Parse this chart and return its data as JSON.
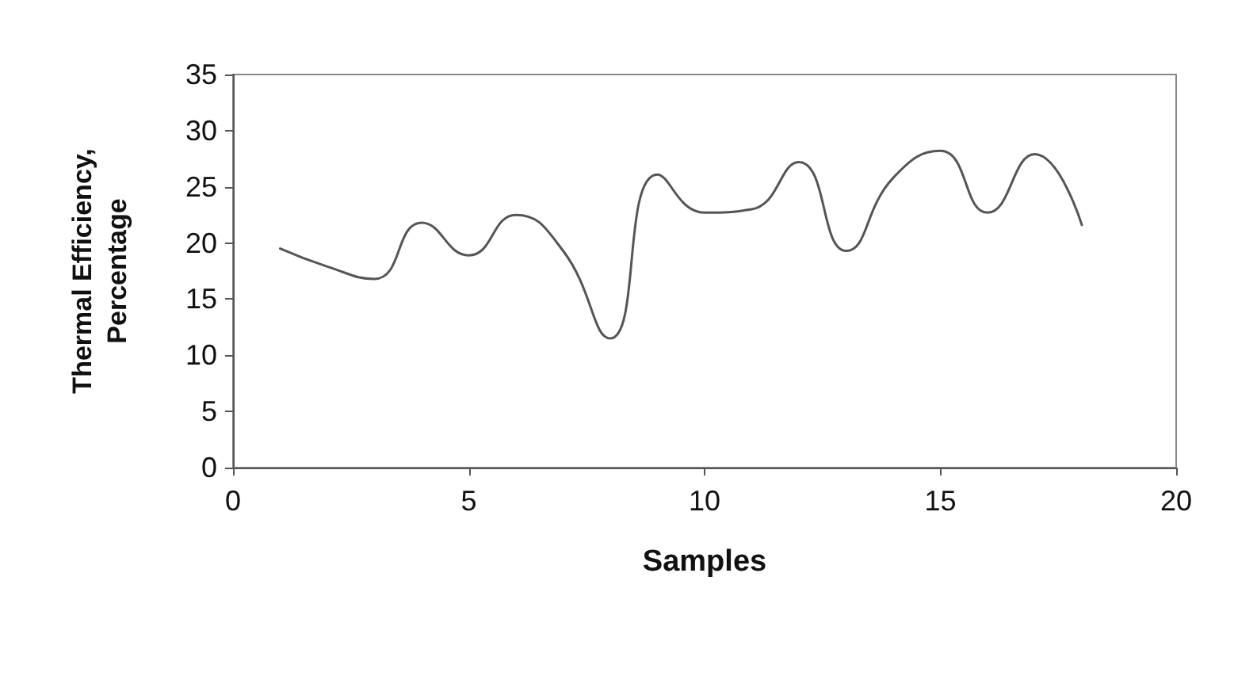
{
  "chart_data": {
    "type": "line",
    "xlabel": "Samples",
    "ylabel": "Thermal Efficiency, Percentage",
    "x": [
      1,
      2,
      3,
      4,
      5,
      6,
      7,
      8,
      9,
      10,
      11,
      12,
      13,
      14,
      15,
      16,
      17,
      18
    ],
    "series": [
      {
        "color": "#555555",
        "values": [
          19.5,
          17.9,
          16.8,
          21.8,
          18.9,
          22.5,
          19.3,
          11.5,
          26.1,
          22.7,
          23,
          27.2,
          19.3,
          25.8,
          28.2,
          22.7,
          27.9,
          21.6
        ]
      }
    ],
    "xlim": [
      0,
      20
    ],
    "xticks": [
      0,
      5,
      10,
      15,
      20
    ],
    "ylim": [
      0,
      35
    ],
    "yticks": [
      0,
      5,
      10,
      15,
      20,
      25,
      30,
      35
    ],
    "grid": false,
    "marker": "none",
    "line_style": "solid"
  }
}
